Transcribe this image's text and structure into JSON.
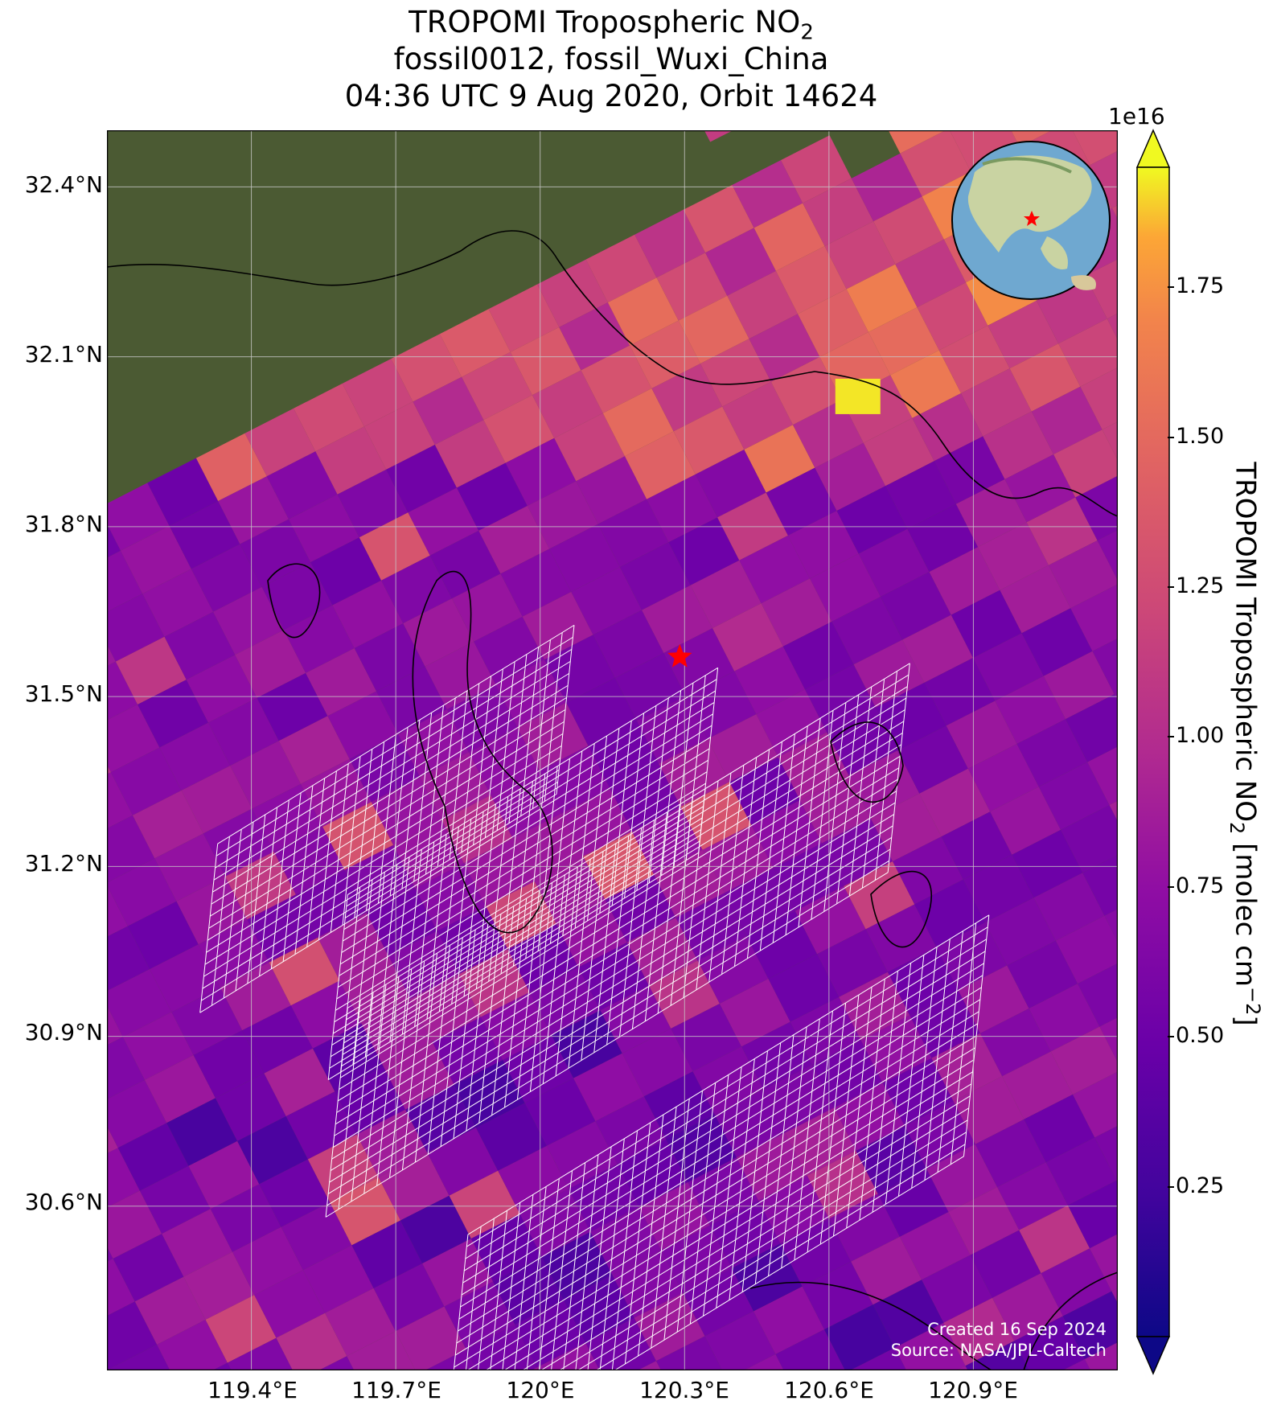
{
  "title": {
    "line1": "TROPOMI Tropospheric NO",
    "line1_sub": "2",
    "line2": "fossil0012, fossil_Wuxi_China",
    "line3": "04:36 UTC 9 Aug 2020, Orbit 14624"
  },
  "map": {
    "lat_ticks": [
      "32.4°N",
      "32.1°N",
      "31.8°N",
      "31.5°N",
      "31.2°N",
      "30.9°N",
      "30.6°N"
    ],
    "lon_ticks": [
      "119.4°E",
      "119.7°E",
      "120°E",
      "120.3°E",
      "120.6°E",
      "120.9°E"
    ],
    "lat_range": [
      30.31,
      32.5
    ],
    "lon_range": [
      119.1,
      121.2
    ],
    "target_marker": {
      "lon": 120.29,
      "lat": 31.57,
      "color": "#ff0000",
      "icon": "star-icon"
    },
    "basemap_color": "#4b5a33",
    "gridline_color": "#c8c8c8"
  },
  "credit": {
    "line1": "Created 16 Sep 2024",
    "line2": "Source: NASA/JPL-Caltech"
  },
  "inset_globe": {
    "icon": "globe-icon",
    "ocean_color": "#6fa8d0",
    "land_color": "#c9d3a2",
    "marker_color": "#ff0000"
  },
  "colorbar": {
    "exponent_label": "1e16",
    "ticks": [
      "0.25",
      "0.50",
      "0.75",
      "1.00",
      "1.25",
      "1.50",
      "1.75"
    ],
    "tick_values": [
      0.25,
      0.5,
      0.75,
      1.0,
      1.25,
      1.5,
      1.75
    ],
    "vmin": 0.0,
    "vmax": 1.95,
    "colormap": "plasma",
    "label": "TROPOMI Tropospheric NO",
    "label_sub": "2",
    "label_units": " [molec cm",
    "label_units_sup": "−2",
    "label_close": "]"
  }
}
